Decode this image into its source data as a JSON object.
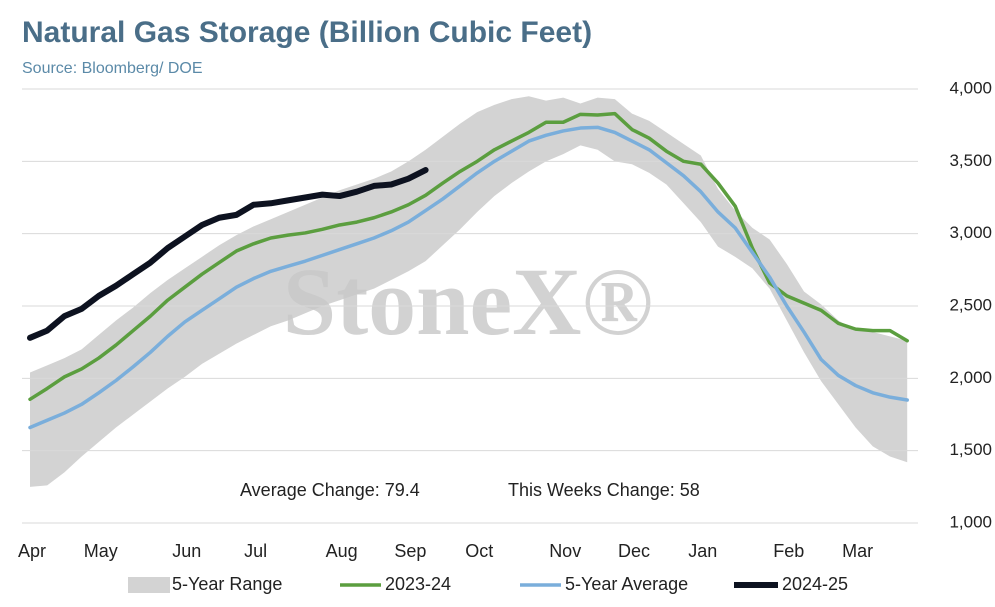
{
  "chart_data": {
    "type": "line",
    "title": "Natural Gas Storage (Billion Cubic Feet)",
    "subtitle": "Source: Bloomberg/ DOE",
    "watermark": "StoneX®",
    "annotations": [
      "Average Change: 79.4",
      "This Weeks Change: 58"
    ],
    "categories": [
      "Apr",
      null,
      null,
      null,
      "May",
      null,
      null,
      null,
      null,
      "Jun",
      null,
      null,
      null,
      "Jul",
      null,
      null,
      null,
      null,
      "Aug",
      null,
      null,
      null,
      "Sep",
      null,
      null,
      null,
      "Oct",
      null,
      null,
      null,
      null,
      "Nov",
      null,
      null,
      null,
      "Dec",
      null,
      null,
      null,
      "Jan",
      null,
      null,
      null,
      null,
      "Feb",
      null,
      null,
      null,
      "Mar",
      null,
      null,
      null
    ],
    "ylim": [
      1000,
      4000
    ],
    "yticks": [
      {
        "value": 1000,
        "label": "1,000"
      },
      {
        "value": 1500,
        "label": "1,500"
      },
      {
        "value": 2000,
        "label": "2,000"
      },
      {
        "value": 2500,
        "label": "2,500"
      },
      {
        "value": 3000,
        "label": "3,000"
      },
      {
        "value": 3500,
        "label": "3,500"
      },
      {
        "value": 4000,
        "label": "4,000"
      }
    ],
    "grid": true,
    "legend": "bottom",
    "range": {
      "name": "5-Year Range",
      "color": "#d3d3d3",
      "high": [
        2040,
        2090,
        2140,
        2200,
        2300,
        2400,
        2490,
        2590,
        2680,
        2760,
        2840,
        2920,
        2990,
        3050,
        3100,
        3150,
        3200,
        3250,
        3300,
        3340,
        3380,
        3430,
        3500,
        3580,
        3670,
        3760,
        3840,
        3890,
        3930,
        3950,
        3920,
        3940,
        3900,
        3940,
        3930,
        3830,
        3780,
        3700,
        3620,
        3540,
        3310,
        3160,
        3040,
        2960,
        2790,
        2600,
        2510,
        2400,
        2330,
        2320,
        2290,
        2260
      ],
      "low": [
        1250,
        1260,
        1350,
        1460,
        1560,
        1660,
        1750,
        1840,
        1930,
        2010,
        2100,
        2170,
        2240,
        2300,
        2360,
        2400,
        2450,
        2500,
        2540,
        2580,
        2620,
        2680,
        2740,
        2810,
        2920,
        3030,
        3150,
        3260,
        3350,
        3430,
        3500,
        3550,
        3610,
        3580,
        3500,
        3480,
        3420,
        3340,
        3210,
        3080,
        2910,
        2840,
        2760,
        2620,
        2400,
        2180,
        1980,
        1820,
        1660,
        1530,
        1460,
        1420
      ]
    },
    "series": [
      {
        "name": "2023-24",
        "color": "#5b9e3f",
        "values": [
          1855,
          1930,
          2010,
          2065,
          2140,
          2230,
          2330,
          2430,
          2540,
          2630,
          2720,
          2800,
          2880,
          2930,
          2970,
          2990,
          3005,
          3030,
          3060,
          3080,
          3110,
          3150,
          3200,
          3265,
          3350,
          3430,
          3500,
          3580,
          3640,
          3700,
          3770,
          3770,
          3825,
          3820,
          3830,
          3720,
          3660,
          3570,
          3500,
          3480,
          3350,
          3190,
          2900,
          2660,
          2570,
          2520,
          2470,
          2380,
          2340,
          2330,
          2330,
          2260
        ]
      },
      {
        "name": "5-Year Average",
        "color": "#7aaedb",
        "values": [
          1660,
          1710,
          1760,
          1820,
          1900,
          1985,
          2080,
          2180,
          2290,
          2390,
          2470,
          2550,
          2630,
          2690,
          2740,
          2775,
          2810,
          2850,
          2890,
          2930,
          2970,
          3020,
          3080,
          3160,
          3240,
          3330,
          3420,
          3500,
          3570,
          3640,
          3680,
          3710,
          3730,
          3735,
          3700,
          3640,
          3580,
          3490,
          3400,
          3290,
          3150,
          3040,
          2870,
          2700,
          2500,
          2320,
          2130,
          2020,
          1950,
          1900,
          1870,
          1850
        ]
      },
      {
        "name": "2024-25",
        "color": "#0d1220",
        "values": [
          2280,
          2330,
          2430,
          2480,
          2570,
          2640,
          2720,
          2800,
          2900,
          2980,
          3060,
          3110,
          3130,
          3200,
          3210,
          3230,
          3250,
          3270,
          3260,
          3290,
          3330,
          3340,
          3380,
          3440,
          null,
          null,
          null,
          null,
          null,
          null,
          null,
          null,
          null,
          null,
          null,
          null,
          null,
          null,
          null,
          null,
          null,
          null,
          null,
          null,
          null,
          null,
          null,
          null,
          null,
          null,
          null,
          null
        ]
      }
    ]
  }
}
